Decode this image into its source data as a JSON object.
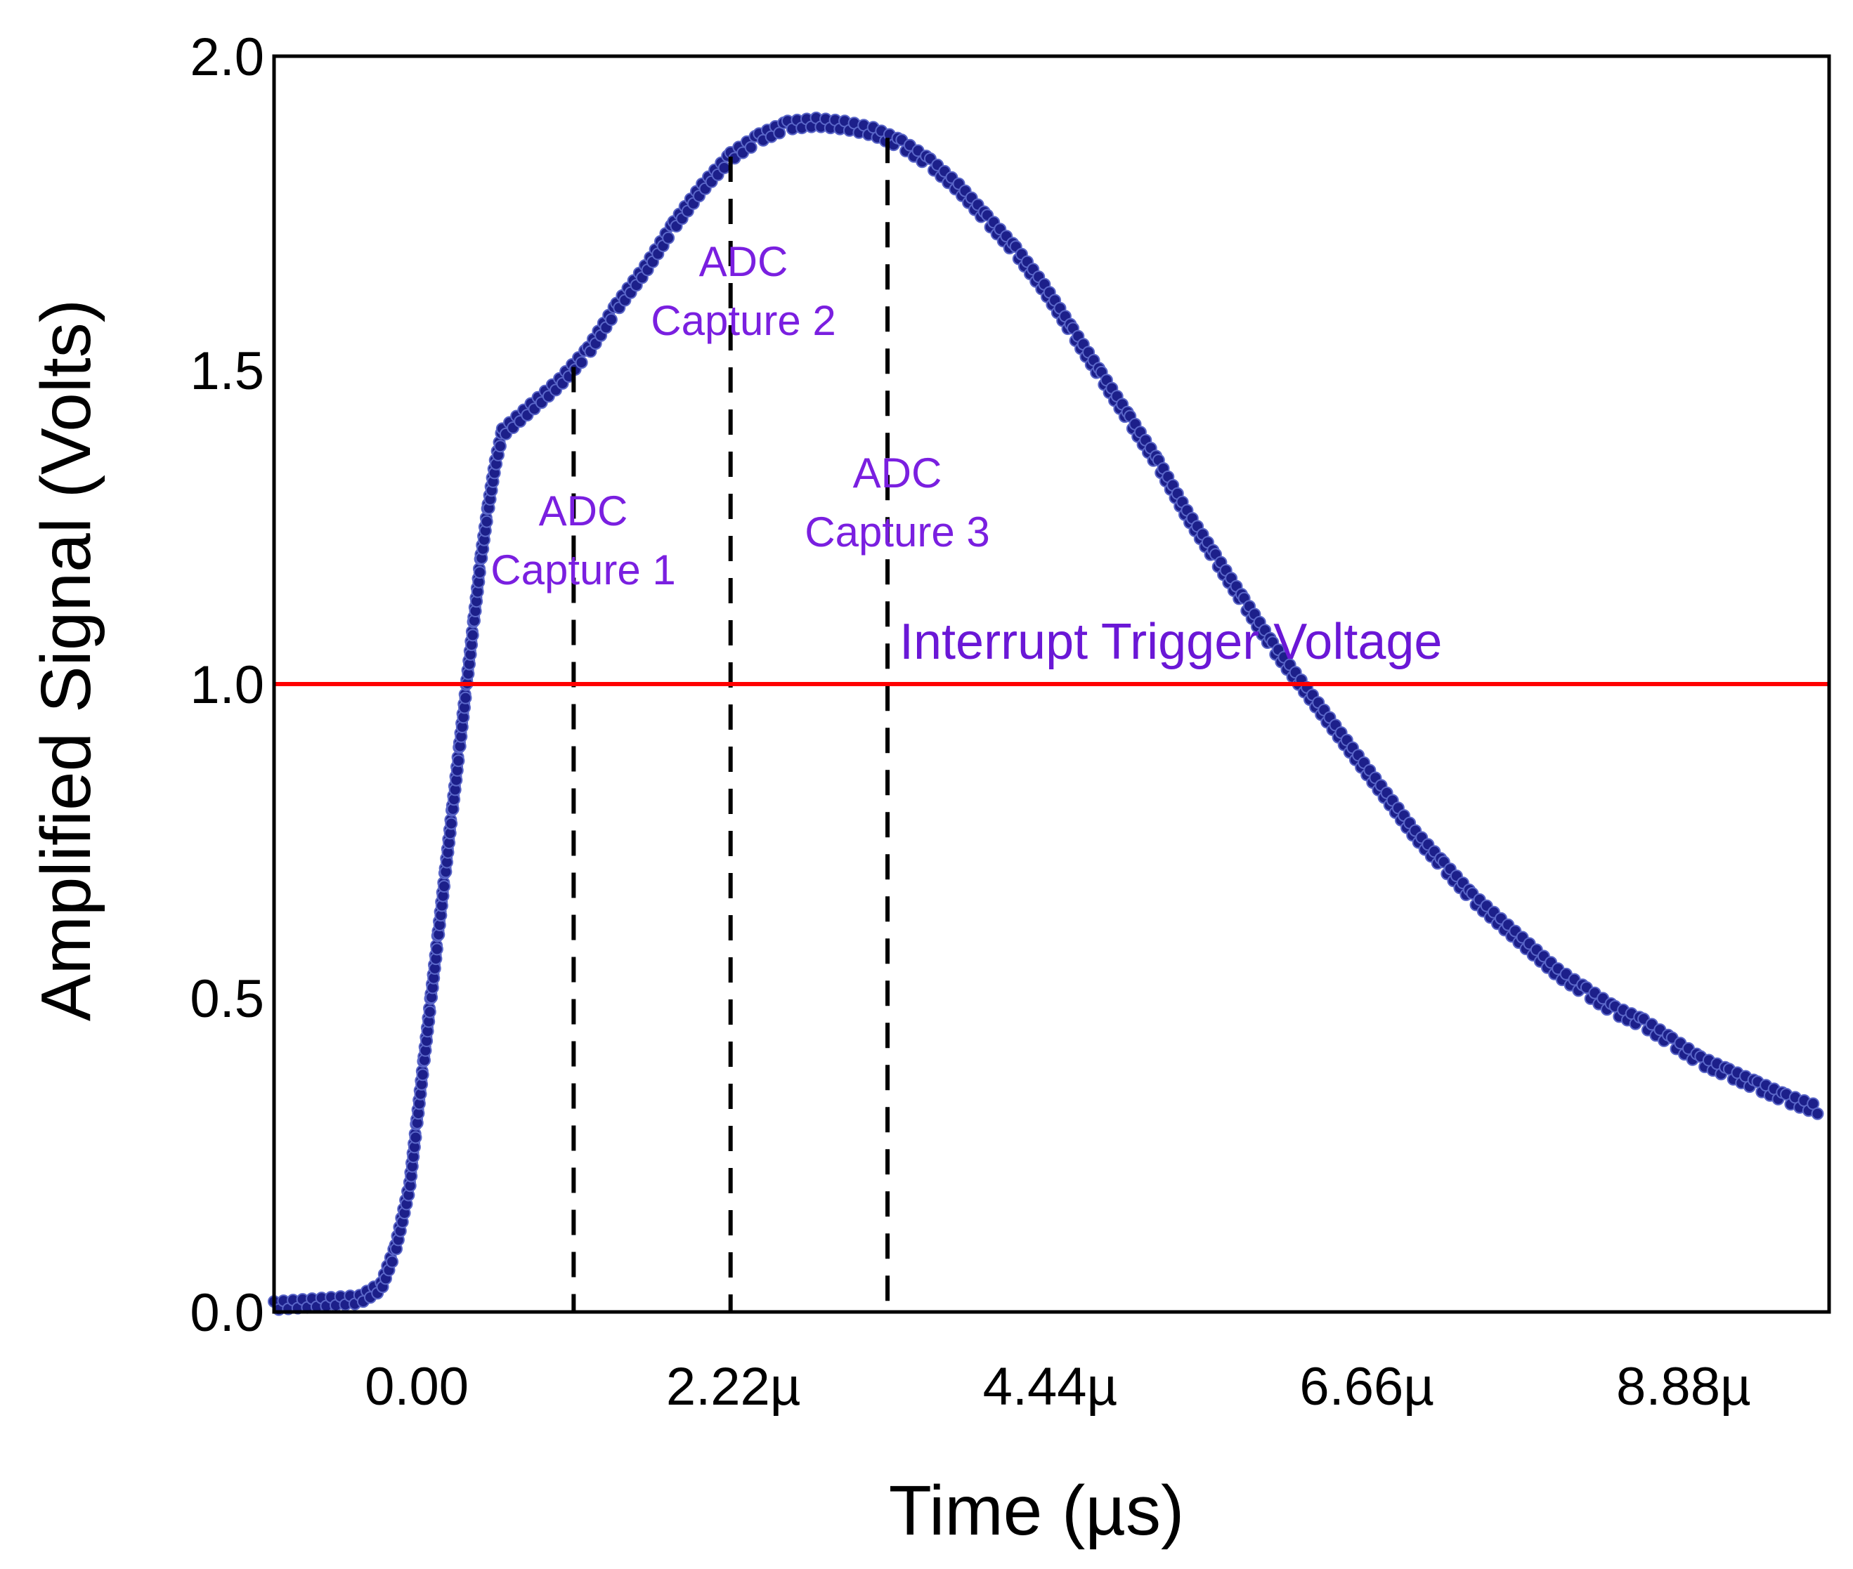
{
  "chart_data": {
    "type": "scatter",
    "title": "",
    "xlabel": "Time (µs)",
    "ylabel": "Amplified Signal (Volts)",
    "xlim": [
      -1.0,
      9.9
    ],
    "ylim": [
      0.0,
      2.0
    ],
    "x_ticks": [
      {
        "value": 0.0,
        "label": "0.00"
      },
      {
        "value": 2.22,
        "label": "2.22µ"
      },
      {
        "value": 4.44,
        "label": "4.44µ"
      },
      {
        "value": 6.66,
        "label": "6.66µ"
      },
      {
        "value": 8.88,
        "label": "8.88µ"
      }
    ],
    "y_ticks": [
      {
        "value": 0.0,
        "label": "0.0"
      },
      {
        "value": 0.5,
        "label": "0.5"
      },
      {
        "value": 1.0,
        "label": "1.0"
      },
      {
        "value": 1.5,
        "label": "1.5"
      },
      {
        "value": 2.0,
        "label": "2.0"
      }
    ],
    "grid": false,
    "series": [
      {
        "name": "Amplified Signal",
        "color": "#1c1f8a",
        "points": [
          [
            -1.0,
            0.01
          ],
          [
            -0.4,
            0.02
          ],
          [
            -0.25,
            0.04
          ],
          [
            -0.15,
            0.1
          ],
          [
            -0.05,
            0.2
          ],
          [
            0.0,
            0.3
          ],
          [
            0.05,
            0.4
          ],
          [
            0.1,
            0.5
          ],
          [
            0.15,
            0.6
          ],
          [
            0.2,
            0.7
          ],
          [
            0.25,
            0.8
          ],
          [
            0.3,
            0.9
          ],
          [
            0.35,
            1.0
          ],
          [
            0.4,
            1.1
          ],
          [
            0.45,
            1.2
          ],
          [
            0.5,
            1.28
          ],
          [
            0.55,
            1.35
          ],
          [
            0.6,
            1.4
          ],
          [
            0.7,
            1.42
          ],
          [
            0.8,
            1.44
          ],
          [
            1.0,
            1.48
          ],
          [
            1.2,
            1.53
          ],
          [
            1.4,
            1.6
          ],
          [
            1.6,
            1.66
          ],
          [
            1.8,
            1.73
          ],
          [
            2.0,
            1.79
          ],
          [
            2.2,
            1.84
          ],
          [
            2.4,
            1.87
          ],
          [
            2.6,
            1.89
          ],
          [
            2.8,
            1.895
          ],
          [
            3.0,
            1.89
          ],
          [
            3.2,
            1.88
          ],
          [
            3.4,
            1.86
          ],
          [
            3.6,
            1.83
          ],
          [
            3.8,
            1.79
          ],
          [
            4.0,
            1.74
          ],
          [
            4.2,
            1.69
          ],
          [
            4.4,
            1.63
          ],
          [
            4.6,
            1.56
          ],
          [
            4.8,
            1.49
          ],
          [
            5.0,
            1.42
          ],
          [
            5.2,
            1.35
          ],
          [
            5.4,
            1.27
          ],
          [
            5.6,
            1.2
          ],
          [
            5.8,
            1.13
          ],
          [
            6.0,
            1.06
          ],
          [
            6.2,
            1.0
          ],
          [
            6.4,
            0.94
          ],
          [
            6.6,
            0.88
          ],
          [
            6.8,
            0.82
          ],
          [
            7.0,
            0.76
          ],
          [
            7.2,
            0.71
          ],
          [
            7.4,
            0.66
          ],
          [
            7.6,
            0.62
          ],
          [
            7.8,
            0.58
          ],
          [
            8.0,
            0.54
          ],
          [
            8.2,
            0.51
          ],
          [
            8.4,
            0.48
          ],
          [
            8.6,
            0.46
          ],
          [
            8.8,
            0.43
          ],
          [
            9.0,
            0.4
          ],
          [
            9.2,
            0.38
          ],
          [
            9.4,
            0.36
          ],
          [
            9.6,
            0.34
          ],
          [
            9.85,
            0.32
          ]
        ]
      }
    ],
    "reference_lines": [
      {
        "name": "Interrupt Trigger Voltage",
        "orientation": "horizontal",
        "value": 1.0,
        "color": "#ff0000",
        "label": "Interrupt Trigger Voltage"
      }
    ],
    "markers": [
      {
        "name": "ADC Capture 1",
        "x": 1.1,
        "label_lines": [
          "ADC",
          "Capture 1"
        ]
      },
      {
        "name": "ADC Capture 2",
        "x": 2.2,
        "label_lines": [
          "ADC",
          "Capture 2"
        ]
      },
      {
        "name": "ADC Capture 3",
        "x": 3.3,
        "label_lines": [
          "ADC",
          "Capture 3"
        ]
      }
    ],
    "colors": {
      "annotation": "#7a1fe0",
      "trigger_label": "#6a17d6",
      "marker_line": "#000000"
    }
  }
}
